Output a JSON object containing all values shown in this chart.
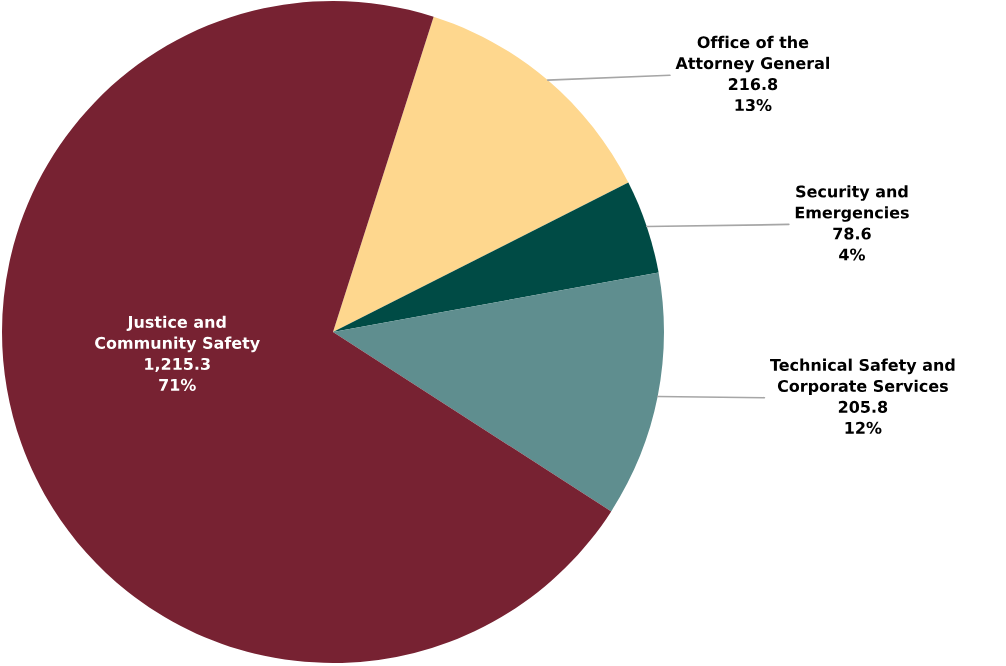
{
  "chart_data": {
    "type": "pie",
    "categories": [
      "Office of the\nAttorney General",
      "Security and\nEmergencies",
      "Technical Safety and\nCorporate Services",
      "Justice and\nCommunity Safety"
    ],
    "values": [
      216.8,
      78.6,
      205.8,
      1215.3
    ],
    "colors": [
      "#fed78e",
      "#004b45",
      "#5f8e8f",
      "#772232"
    ],
    "value_labels": [
      "216.8\n13%",
      "78.6\n4%",
      "205.8\n12%",
      "1,215.3\n71%"
    ],
    "legend": false
  }
}
